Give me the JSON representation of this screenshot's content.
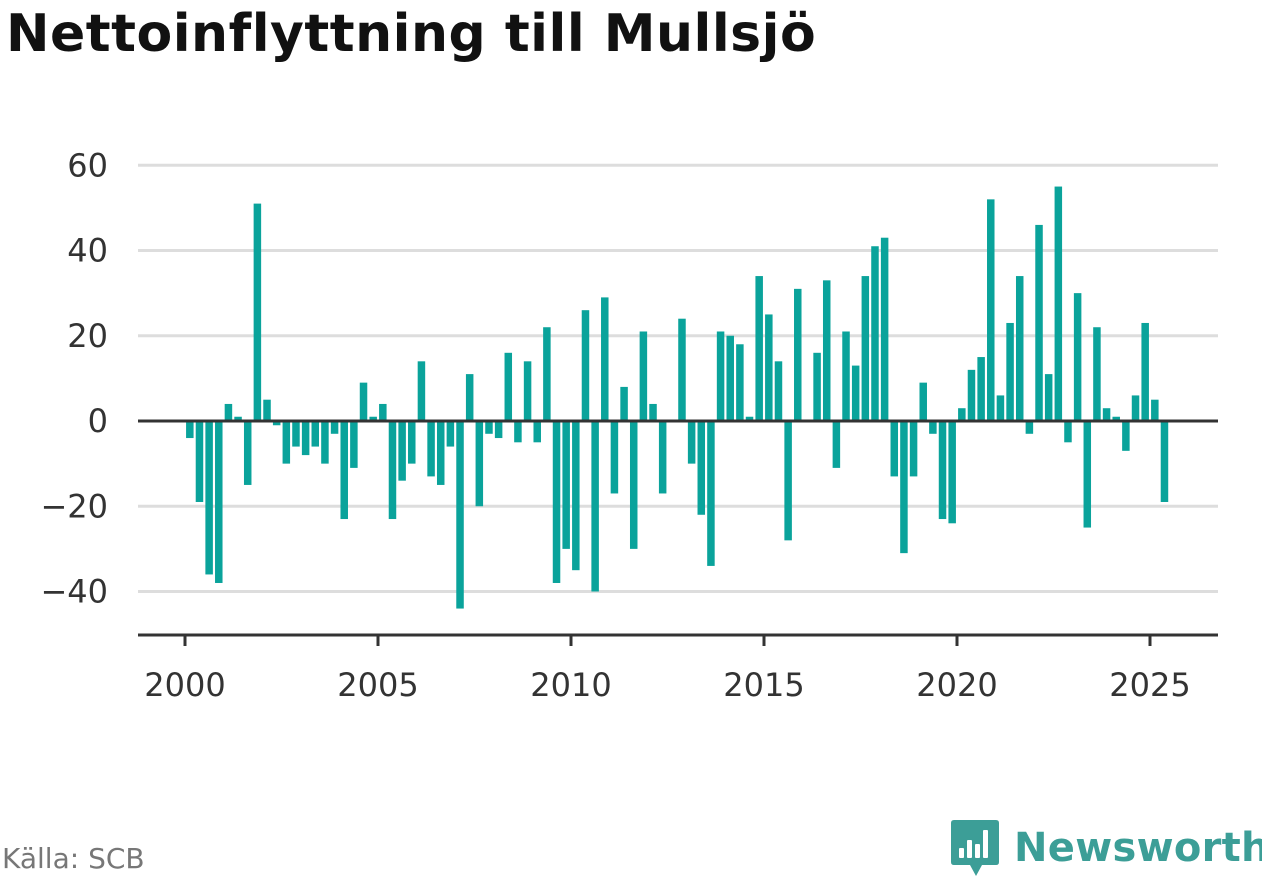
{
  "title": "Nettoinflyttning till Mullsjö",
  "source": "Källa: SCB",
  "brand": {
    "name": "Newsworthy",
    "logo_icon": "newsworthy-chart-bubble-icon"
  },
  "colors": {
    "bar": "#0aa39b",
    "grid": "#dddddd",
    "axis": "#333333",
    "tick_text": "#333333"
  },
  "chart_data": {
    "type": "bar",
    "title": "Nettoinflyttning till Mullsjö",
    "xlabel": "",
    "ylabel": "",
    "ylim": [
      -50,
      60
    ],
    "xlim": [
      1999.5,
      2026.7
    ],
    "grid": true,
    "yticks": [
      60,
      40,
      20,
      0,
      -20,
      -40
    ],
    "ytick_labels": [
      "60",
      "40",
      "20",
      "0",
      "−20",
      "−40"
    ],
    "xticks": [
      2000,
      2005,
      2010,
      2015,
      2020,
      2025
    ],
    "xtick_labels": [
      "2000",
      "2005",
      "2010",
      "2015",
      "2020",
      "2025"
    ],
    "x_unit": "year (quarterly bars)",
    "start_year": 2000,
    "values": [
      -4,
      -19,
      -36,
      -38,
      4,
      1,
      -15,
      51,
      5,
      -1,
      -10,
      -6,
      -8,
      -6,
      -10,
      -3,
      -23,
      -11,
      9,
      1,
      4,
      -23,
      -14,
      -10,
      14,
      -13,
      -15,
      -6,
      -44,
      11,
      -20,
      -3,
      -4,
      16,
      -5,
      14,
      -5,
      22,
      -38,
      -30,
      -35,
      26,
      -40,
      29,
      -17,
      8,
      -30,
      21,
      4,
      -17,
      0,
      24,
      -10,
      -22,
      -34,
      21,
      20,
      18,
      1,
      34,
      25,
      14,
      -28,
      31,
      0,
      16,
      33,
      -11,
      21,
      13,
      34,
      41,
      43,
      -13,
      -31,
      -13,
      9,
      -3,
      -23,
      -24,
      3,
      12,
      15,
      52,
      6,
      23,
      34,
      -3,
      46,
      11,
      55,
      -5,
      30,
      -25,
      22,
      3,
      1,
      -7,
      6,
      23,
      5,
      -19
    ]
  }
}
